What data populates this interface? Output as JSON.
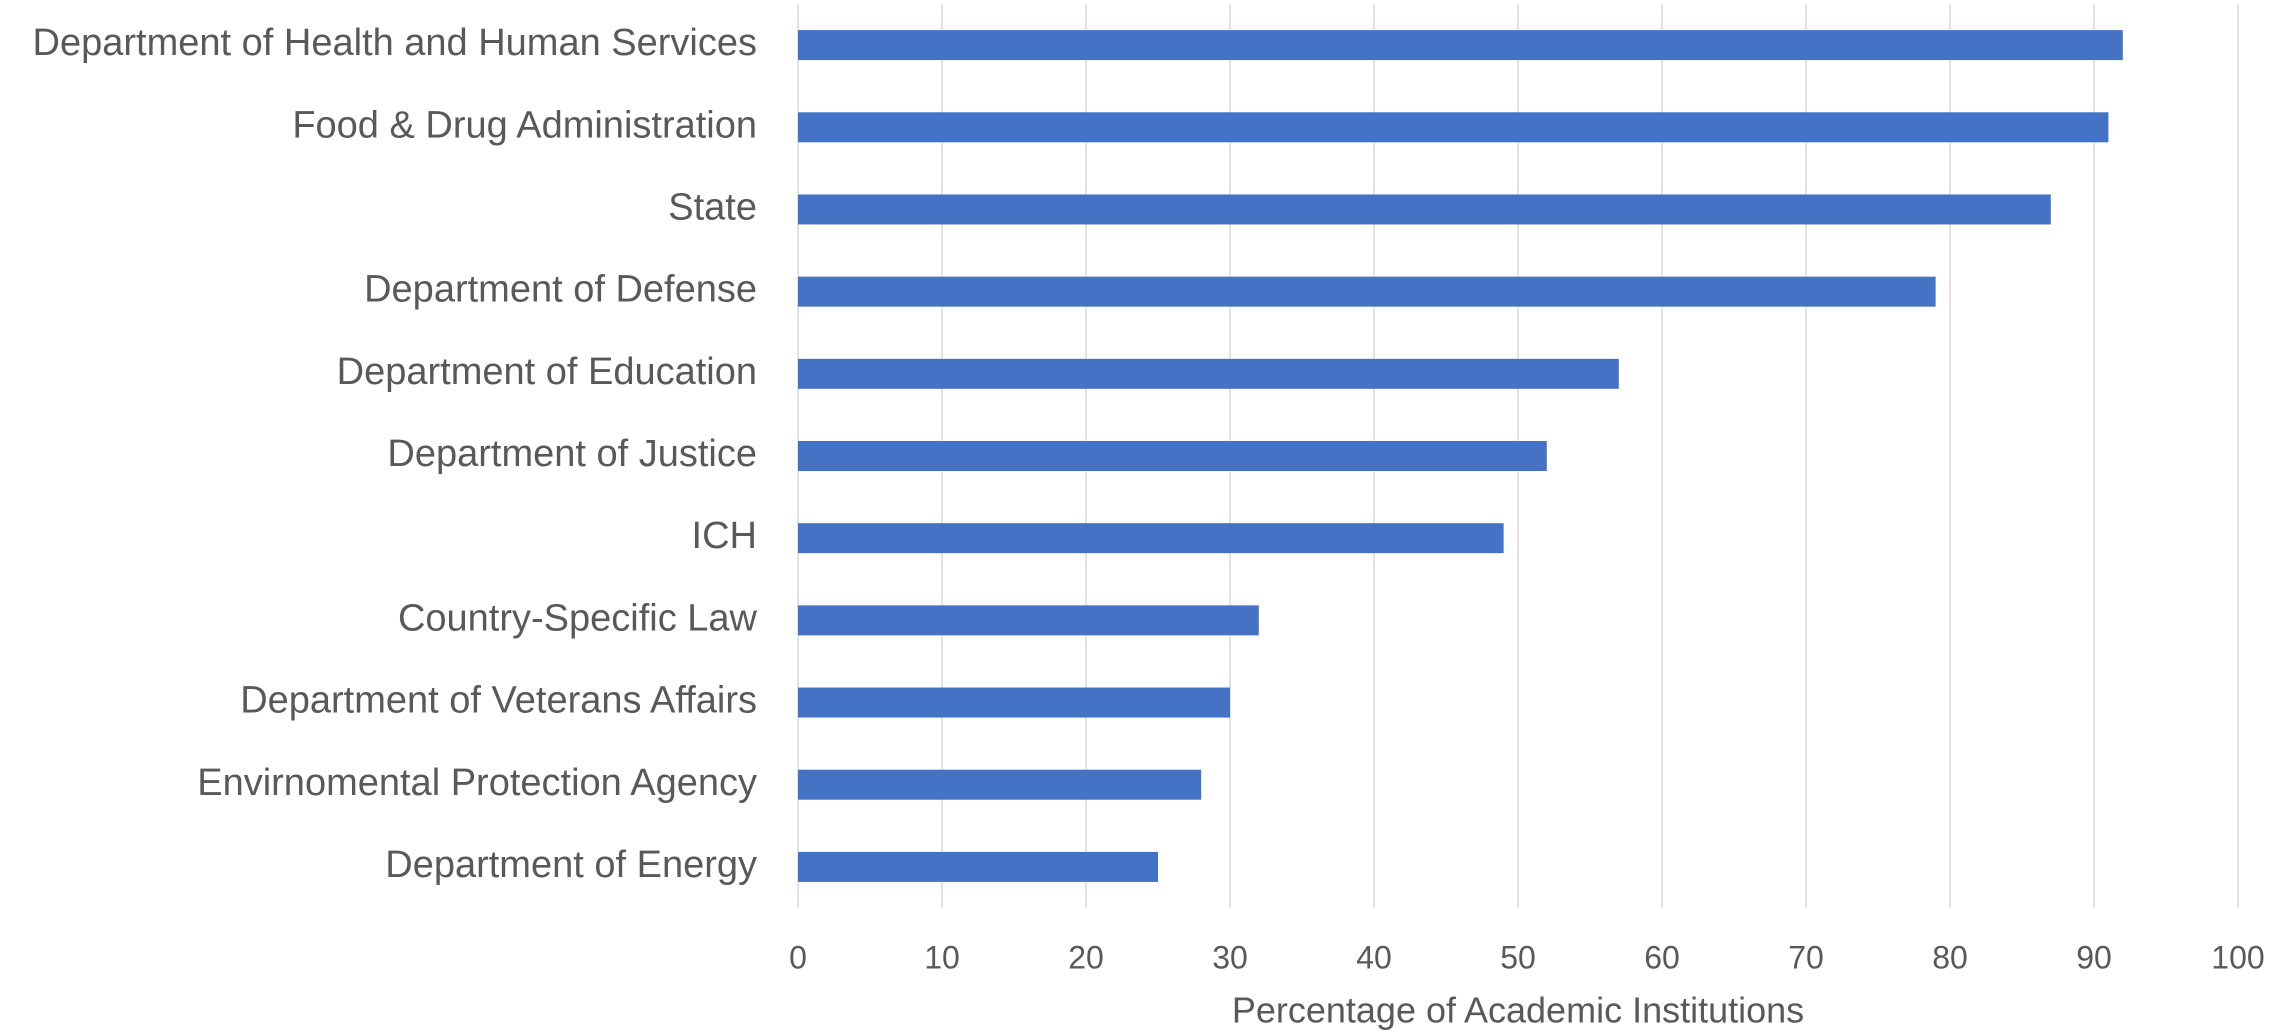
{
  "chart_data": {
    "type": "barh",
    "categories": [
      "Department of Health and Human Services",
      "Food & Drug Administration",
      "State",
      "Department of Defense",
      "Department of Education",
      "Department of Justice",
      "ICH",
      "Country-Specific Law",
      "Department of Veterans Affairs",
      "Envirnomental Protection Agency",
      "Department of Energy"
    ],
    "values": [
      92,
      91,
      87,
      79,
      57,
      52,
      49,
      32,
      30,
      28,
      25
    ],
    "color": "#4472c4",
    "xlabel": "Percentage of Academic Institutions",
    "xlim": [
      0,
      100
    ],
    "xticks": [
      0,
      10,
      20,
      30,
      40,
      50,
      60,
      70,
      80,
      90,
      100
    ],
    "grid": true
  }
}
